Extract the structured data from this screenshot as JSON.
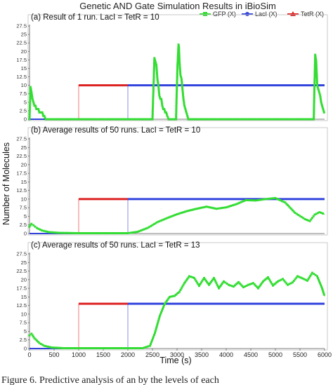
{
  "figure": {
    "title": "Genetic AND Gate Simulation Results in iBioSim",
    "xlabel": "Time (s)",
    "ylabel": "Number of Molecules",
    "caption": "Figure 6. Predictive analysis of an by the levels of each"
  },
  "legend": [
    {
      "name": "GFP (X)",
      "color": "#33dd33",
      "marker": "square"
    },
    {
      "name": "LacI (X)",
      "color": "#3344dd",
      "marker": "circle"
    },
    {
      "name": "TetR (X)",
      "color": "#dd2222",
      "marker": "triangle"
    }
  ],
  "chart_data": [
    {
      "type": "line",
      "title": "(a) Result of 1 run. LacI = TetR = 10",
      "xlim": [
        0,
        6000
      ],
      "ylim": [
        0,
        27.5
      ],
      "yticks": [
        "0",
        "2.5",
        "5",
        "7.5",
        "10",
        "12.5",
        "15",
        "17.5",
        "20",
        "22.5",
        "25",
        "27.5"
      ],
      "xticks": [],
      "series": [
        {
          "name": "GFP (X)",
          "color": "#33dd33",
          "points": [
            [
              0,
              0
            ],
            [
              20,
              9.5
            ],
            [
              40,
              8
            ],
            [
              60,
              6
            ],
            [
              80,
              5
            ],
            [
              100,
              4
            ],
            [
              120,
              4
            ],
            [
              140,
              3
            ],
            [
              160,
              3
            ],
            [
              180,
              3
            ],
            [
              200,
              2
            ],
            [
              220,
              2
            ],
            [
              240,
              2
            ],
            [
              260,
              2
            ],
            [
              280,
              1
            ],
            [
              300,
              1
            ],
            [
              330,
              0
            ],
            [
              2500,
              0
            ],
            [
              2540,
              18
            ],
            [
              2560,
              17
            ],
            [
              2580,
              16
            ],
            [
              2600,
              12
            ],
            [
              2620,
              10
            ],
            [
              2640,
              7
            ],
            [
              2660,
              6
            ],
            [
              2680,
              6
            ],
            [
              2700,
              4
            ],
            [
              2720,
              3
            ],
            [
              2740,
              3
            ],
            [
              2760,
              2
            ],
            [
              2780,
              2
            ],
            [
              2800,
              1
            ],
            [
              2830,
              0
            ],
            [
              2980,
              0
            ],
            [
              2990,
              6
            ],
            [
              3010,
              16
            ],
            [
              3030,
              22
            ],
            [
              3040,
              21
            ],
            [
              3050,
              17
            ],
            [
              3070,
              13
            ],
            [
              3090,
              12
            ],
            [
              3110,
              9
            ],
            [
              3130,
              6
            ],
            [
              3150,
              4
            ],
            [
              3170,
              3
            ],
            [
              3190,
              2
            ],
            [
              3210,
              1
            ],
            [
              3230,
              0
            ],
            [
              5780,
              0
            ],
            [
              5795,
              10
            ],
            [
              5810,
              19
            ],
            [
              5830,
              17
            ],
            [
              5850,
              10
            ],
            [
              5870,
              9
            ],
            [
              5890,
              8
            ],
            [
              5910,
              7
            ],
            [
              5930,
              5
            ],
            [
              5950,
              4
            ],
            [
              5970,
              3
            ],
            [
              5990,
              2
            ],
            [
              6000,
              2
            ]
          ]
        },
        {
          "name": "LacI (X)",
          "color": "#3344dd",
          "points": [
            [
              0,
              0
            ],
            [
              2000,
              0
            ],
            [
              2000,
              10
            ],
            [
              6000,
              10
            ]
          ]
        },
        {
          "name": "TetR (X)",
          "color": "#dd2222",
          "points": [
            [
              0,
              0
            ],
            [
              1000,
              0
            ],
            [
              1000,
              10
            ],
            [
              2000,
              10
            ]
          ]
        }
      ]
    },
    {
      "type": "line",
      "title": "(b) Average results of 50 runs. LacI = TetR = 10",
      "xlim": [
        0,
        6000
      ],
      "ylim": [
        0,
        27.5
      ],
      "yticks": [
        "0",
        "2.5",
        "5",
        "7.5",
        "10",
        "12.5",
        "15",
        "17.5",
        "20",
        "22.5",
        "25",
        "27.5"
      ],
      "xticks": [],
      "series": [
        {
          "name": "GFP (X)",
          "color": "#33dd33",
          "points": [
            [
              0,
              2
            ],
            [
              40,
              2.8
            ],
            [
              80,
              2.4
            ],
            [
              150,
              1.6
            ],
            [
              250,
              0.9
            ],
            [
              400,
              0.4
            ],
            [
              600,
              0.2
            ],
            [
              1000,
              0.1
            ],
            [
              1500,
              0.1
            ],
            [
              2000,
              0.1
            ],
            [
              2200,
              0.5
            ],
            [
              2400,
              1.6
            ],
            [
              2600,
              3.3
            ],
            [
              2800,
              4.5
            ],
            [
              3000,
              5.6
            ],
            [
              3200,
              6.5
            ],
            [
              3400,
              7.2
            ],
            [
              3600,
              7.8
            ],
            [
              3800,
              7.2
            ],
            [
              4000,
              7.6
            ],
            [
              4200,
              8.5
            ],
            [
              4400,
              9.7
            ],
            [
              4600,
              9.6
            ],
            [
              4800,
              10
            ],
            [
              5000,
              10.3
            ],
            [
              5200,
              9
            ],
            [
              5400,
              6
            ],
            [
              5600,
              4.2
            ],
            [
              5700,
              3.6
            ],
            [
              5800,
              5.5
            ],
            [
              5900,
              6.2
            ],
            [
              6000,
              5.6
            ]
          ]
        },
        {
          "name": "LacI (X)",
          "color": "#3344dd",
          "points": [
            [
              0,
              0
            ],
            [
              2000,
              0
            ],
            [
              2000,
              10
            ],
            [
              6000,
              10
            ]
          ]
        },
        {
          "name": "TetR (X)",
          "color": "#dd2222",
          "points": [
            [
              0,
              0
            ],
            [
              1000,
              0
            ],
            [
              1000,
              10
            ],
            [
              2000,
              10
            ]
          ]
        }
      ]
    },
    {
      "type": "line",
      "title": "(c) Average results of 50 runs. LacI = TetR = 13",
      "xlim": [
        0,
        6000
      ],
      "ylim": [
        0,
        27.5
      ],
      "yticks": [
        "0",
        "2.5",
        "5",
        "7.5",
        "10",
        "12.5",
        "15",
        "17.5",
        "20",
        "22.5",
        "25",
        "27.5"
      ],
      "xticks": [
        "0",
        "500",
        "1000",
        "1500",
        "2000",
        "2500",
        "3000",
        "3500",
        "4000",
        "4500",
        "5000",
        "5500",
        "6000"
      ],
      "series": [
        {
          "name": "GFP (X)",
          "color": "#33dd33",
          "points": [
            [
              0,
              3.8
            ],
            [
              40,
              4.3
            ],
            [
              100,
              3
            ],
            [
              200,
              1.6
            ],
            [
              300,
              0.8
            ],
            [
              450,
              0.3
            ],
            [
              700,
              0.1
            ],
            [
              1000,
              0.1
            ],
            [
              1500,
              0.1
            ],
            [
              2000,
              0.1
            ],
            [
              2300,
              0.1
            ],
            [
              2450,
              0.8
            ],
            [
              2550,
              4.5
            ],
            [
              2650,
              9.5
            ],
            [
              2750,
              13
            ],
            [
              2850,
              15
            ],
            [
              2950,
              15.3
            ],
            [
              3050,
              16.5
            ],
            [
              3150,
              19
            ],
            [
              3250,
              21
            ],
            [
              3350,
              20.5
            ],
            [
              3450,
              18.2
            ],
            [
              3550,
              20.5
            ],
            [
              3650,
              18.5
            ],
            [
              3750,
              20.5
            ],
            [
              3850,
              17.5
            ],
            [
              3950,
              19.5
            ],
            [
              4050,
              18.5
            ],
            [
              4150,
              18
            ],
            [
              4250,
              19.3
            ],
            [
              4350,
              17.8
            ],
            [
              4450,
              18.5
            ],
            [
              4550,
              19
            ],
            [
              4650,
              17.5
            ],
            [
              4750,
              19.5
            ],
            [
              4850,
              20.7
            ],
            [
              4950,
              18.3
            ],
            [
              5050,
              19.5
            ],
            [
              5150,
              20.2
            ],
            [
              5250,
              18.5
            ],
            [
              5350,
              19.2
            ],
            [
              5450,
              21
            ],
            [
              5550,
              20.4
            ],
            [
              5650,
              19.7
            ],
            [
              5750,
              22
            ],
            [
              5850,
              21
            ],
            [
              5950,
              17.5
            ],
            [
              6000,
              15.2
            ]
          ]
        },
        {
          "name": "LacI (X)",
          "color": "#3344dd",
          "points": [
            [
              0,
              0
            ],
            [
              2000,
              0
            ],
            [
              2000,
              13
            ],
            [
              6000,
              13
            ]
          ]
        },
        {
          "name": "TetR (X)",
          "color": "#dd2222",
          "points": [
            [
              0,
              0
            ],
            [
              1000,
              0
            ],
            [
              1000,
              13
            ],
            [
              2000,
              13
            ]
          ]
        }
      ]
    }
  ]
}
